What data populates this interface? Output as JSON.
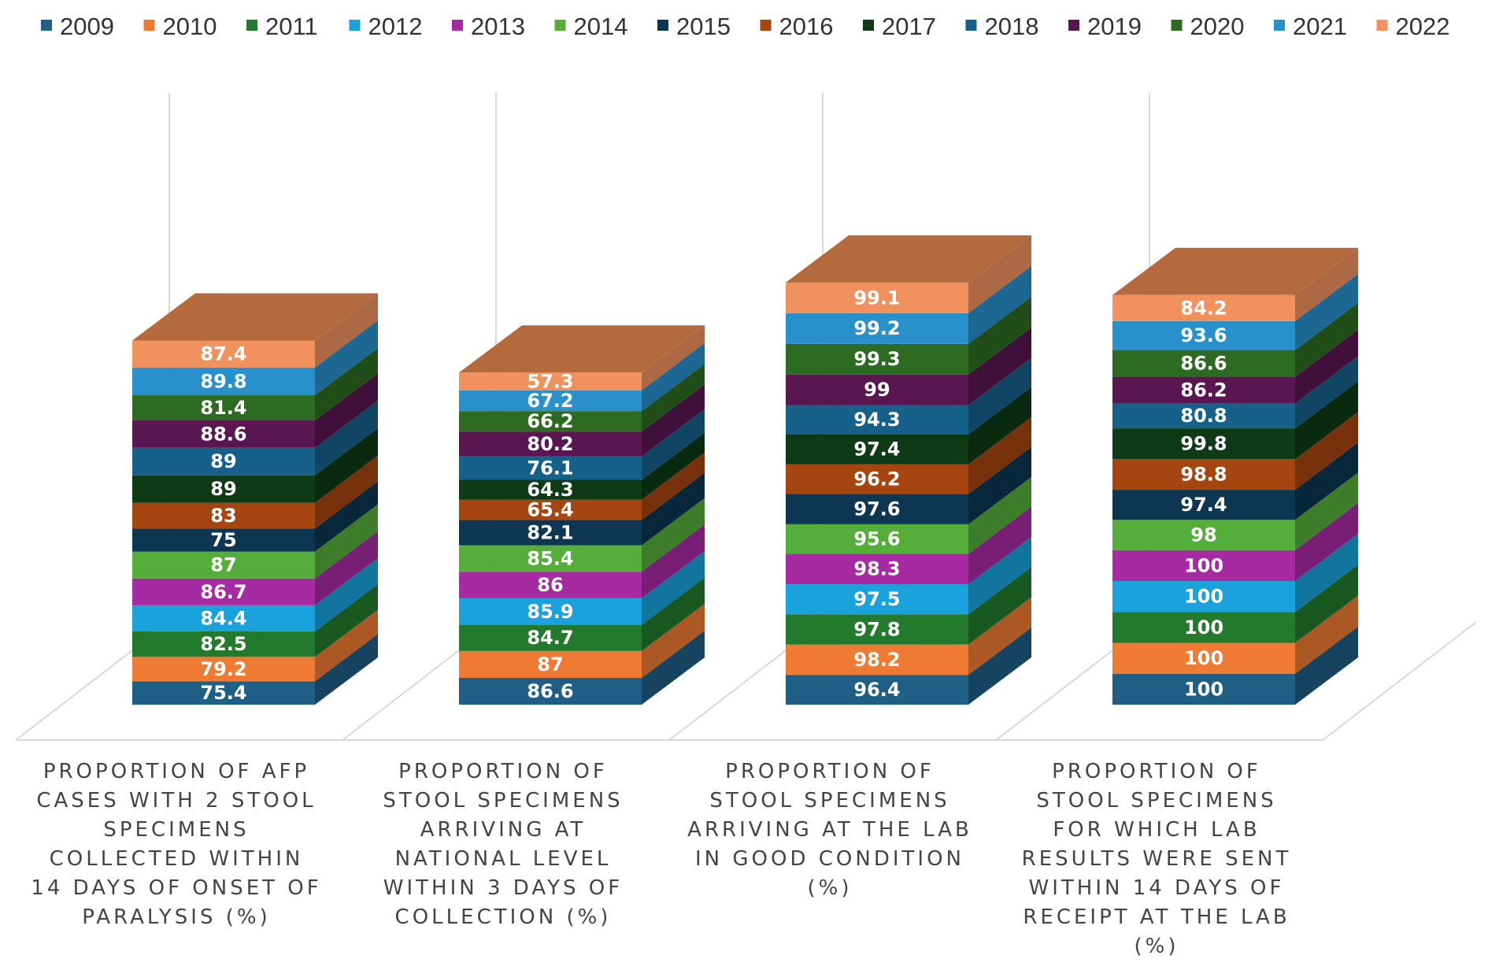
{
  "chart_data": {
    "type": "bar",
    "stacked": true,
    "style": "3d-column",
    "legend_position": "top",
    "categories": [
      [
        "PROPORTION OF AFP",
        "CASES WITH 2 STOOL",
        "SPECIMENS",
        "COLLECTED WITHIN",
        "14 DAYS OF ONSET OF",
        "PARALYSIS (%)"
      ],
      [
        "PROPORTION OF",
        "STOOL SPECIMENS",
        "ARRIVING AT",
        "NATIONAL LEVEL",
        "WITHIN 3 DAYS OF",
        "COLLECTION (%)"
      ],
      [
        "PROPORTION OF",
        "STOOL SPECIMENS",
        "ARRIVING AT THE LAB",
        "IN GOOD CONDITION",
        "(%)"
      ],
      [
        "PROPORTION OF",
        "STOOL SPECIMENS",
        "FOR WHICH LAB",
        "RESULTS WERE SENT",
        "WITHIN 14 DAYS OF",
        "RECEIPT AT THE LAB",
        "(%)"
      ]
    ],
    "series": [
      {
        "name": "2009",
        "color": "#1f5f86",
        "values": [
          75.4,
          86.6,
          96.4,
          100
        ]
      },
      {
        "name": "2010",
        "color": "#ee7a33",
        "values": [
          79.2,
          87,
          98.2,
          100
        ]
      },
      {
        "name": "2011",
        "color": "#237a2d",
        "values": [
          82.5,
          84.7,
          97.8,
          100
        ]
      },
      {
        "name": "2012",
        "color": "#19a2dc",
        "values": [
          84.4,
          85.9,
          97.5,
          100
        ]
      },
      {
        "name": "2013",
        "color": "#a62aa1",
        "values": [
          86.7,
          86,
          98.3,
          100
        ]
      },
      {
        "name": "2014",
        "color": "#55ae3a",
        "values": [
          87,
          85.4,
          95.6,
          98
        ]
      },
      {
        "name": "2015",
        "color": "#0d3652",
        "values": [
          75,
          82.1,
          97.6,
          97.4
        ]
      },
      {
        "name": "2016",
        "color": "#a5450f",
        "values": [
          83,
          65.4,
          96.2,
          98.8
        ]
      },
      {
        "name": "2017",
        "color": "#0e3b16",
        "values": [
          89,
          64.3,
          97.4,
          99.8
        ]
      },
      {
        "name": "2018",
        "color": "#16618a",
        "values": [
          89,
          76.1,
          94.3,
          80.8
        ]
      },
      {
        "name": "2019",
        "color": "#5a1650",
        "values": [
          88.6,
          80.2,
          99,
          86.2
        ]
      },
      {
        "name": "2020",
        "color": "#2e6b22",
        "values": [
          81.4,
          66.2,
          99.3,
          86.6
        ]
      },
      {
        "name": "2021",
        "color": "#2891cc",
        "values": [
          89.8,
          67.2,
          99.2,
          93.6
        ]
      },
      {
        "name": "2022",
        "color": "#f0915e",
        "values": [
          87.4,
          57.3,
          99.1,
          84.2
        ]
      }
    ]
  }
}
